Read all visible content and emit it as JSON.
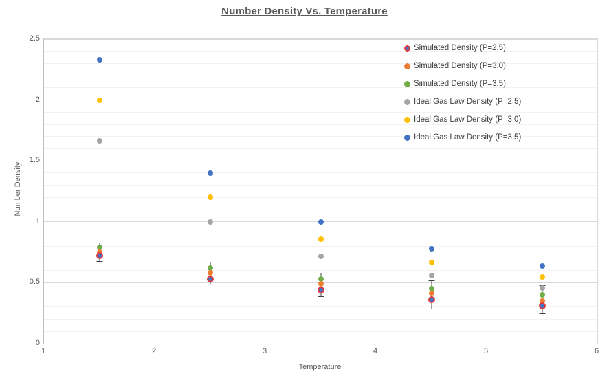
{
  "chart_data": {
    "type": "scatter",
    "title": "Number Density Vs. Temperature",
    "xlabel": "Temperature",
    "ylabel": "Number Density",
    "xlim": [
      1,
      6
    ],
    "ylim": [
      0,
      2.5
    ],
    "x_ticks": [
      1,
      2,
      3,
      4,
      5,
      6
    ],
    "y_ticks": [
      0,
      0.5,
      1,
      1.5,
      2,
      2.5
    ],
    "y_minor_step": 0.1,
    "grid": "horizontal major+minor, no vertical gridlines",
    "legend_position": "inside-top-right",
    "x": [
      1.5,
      2.5,
      3.5,
      4.5,
      5.5
    ],
    "series": [
      {
        "name": "Simulated Density (P=2.5)",
        "values": [
          0.72,
          0.53,
          0.44,
          0.36,
          0.31
        ],
        "marker": {
          "fill": "#4472C4",
          "ring": "#E0393E"
        }
      },
      {
        "name": "Simulated Density (P=3.0)",
        "values": [
          0.75,
          0.58,
          0.49,
          0.41,
          0.35
        ],
        "marker": {
          "fill": "#ED7D31"
        }
      },
      {
        "name": "Simulated Density (P=3.5)",
        "values": [
          0.79,
          0.62,
          0.53,
          0.45,
          0.4
        ],
        "marker": {
          "fill": "#70AD47"
        }
      },
      {
        "name": "Ideal Gas Law Density (P=2.5)",
        "values": [
          1.667,
          1.0,
          0.714,
          0.556,
          0.455
        ],
        "marker": {
          "fill": "#A5A5A5"
        }
      },
      {
        "name": "Ideal Gas Law Density (P=3.0)",
        "values": [
          2.0,
          1.2,
          0.857,
          0.667,
          0.545
        ],
        "marker": {
          "fill": "#FFC000"
        }
      },
      {
        "name": "Ideal Gas Law Density (P=3.5)",
        "values": [
          2.333,
          1.4,
          1.0,
          0.778,
          0.636
        ],
        "marker": {
          "fill": "#4472C4"
        }
      }
    ],
    "error_bars": {
      "applies_to": "simulated density clusters",
      "ranges": [
        [
          0.68,
          0.83
        ],
        [
          0.49,
          0.67
        ],
        [
          0.39,
          0.58
        ],
        [
          0.29,
          0.52
        ],
        [
          0.25,
          0.48
        ]
      ],
      "color": "#404040"
    },
    "colors": {
      "title_text": "#595959",
      "tick_text": "#595959",
      "legend_text": "#404040",
      "grid_major": "#d9d9d9",
      "grid_minor": "#f2f2f2",
      "axis_line": "#bfbfbf"
    }
  }
}
